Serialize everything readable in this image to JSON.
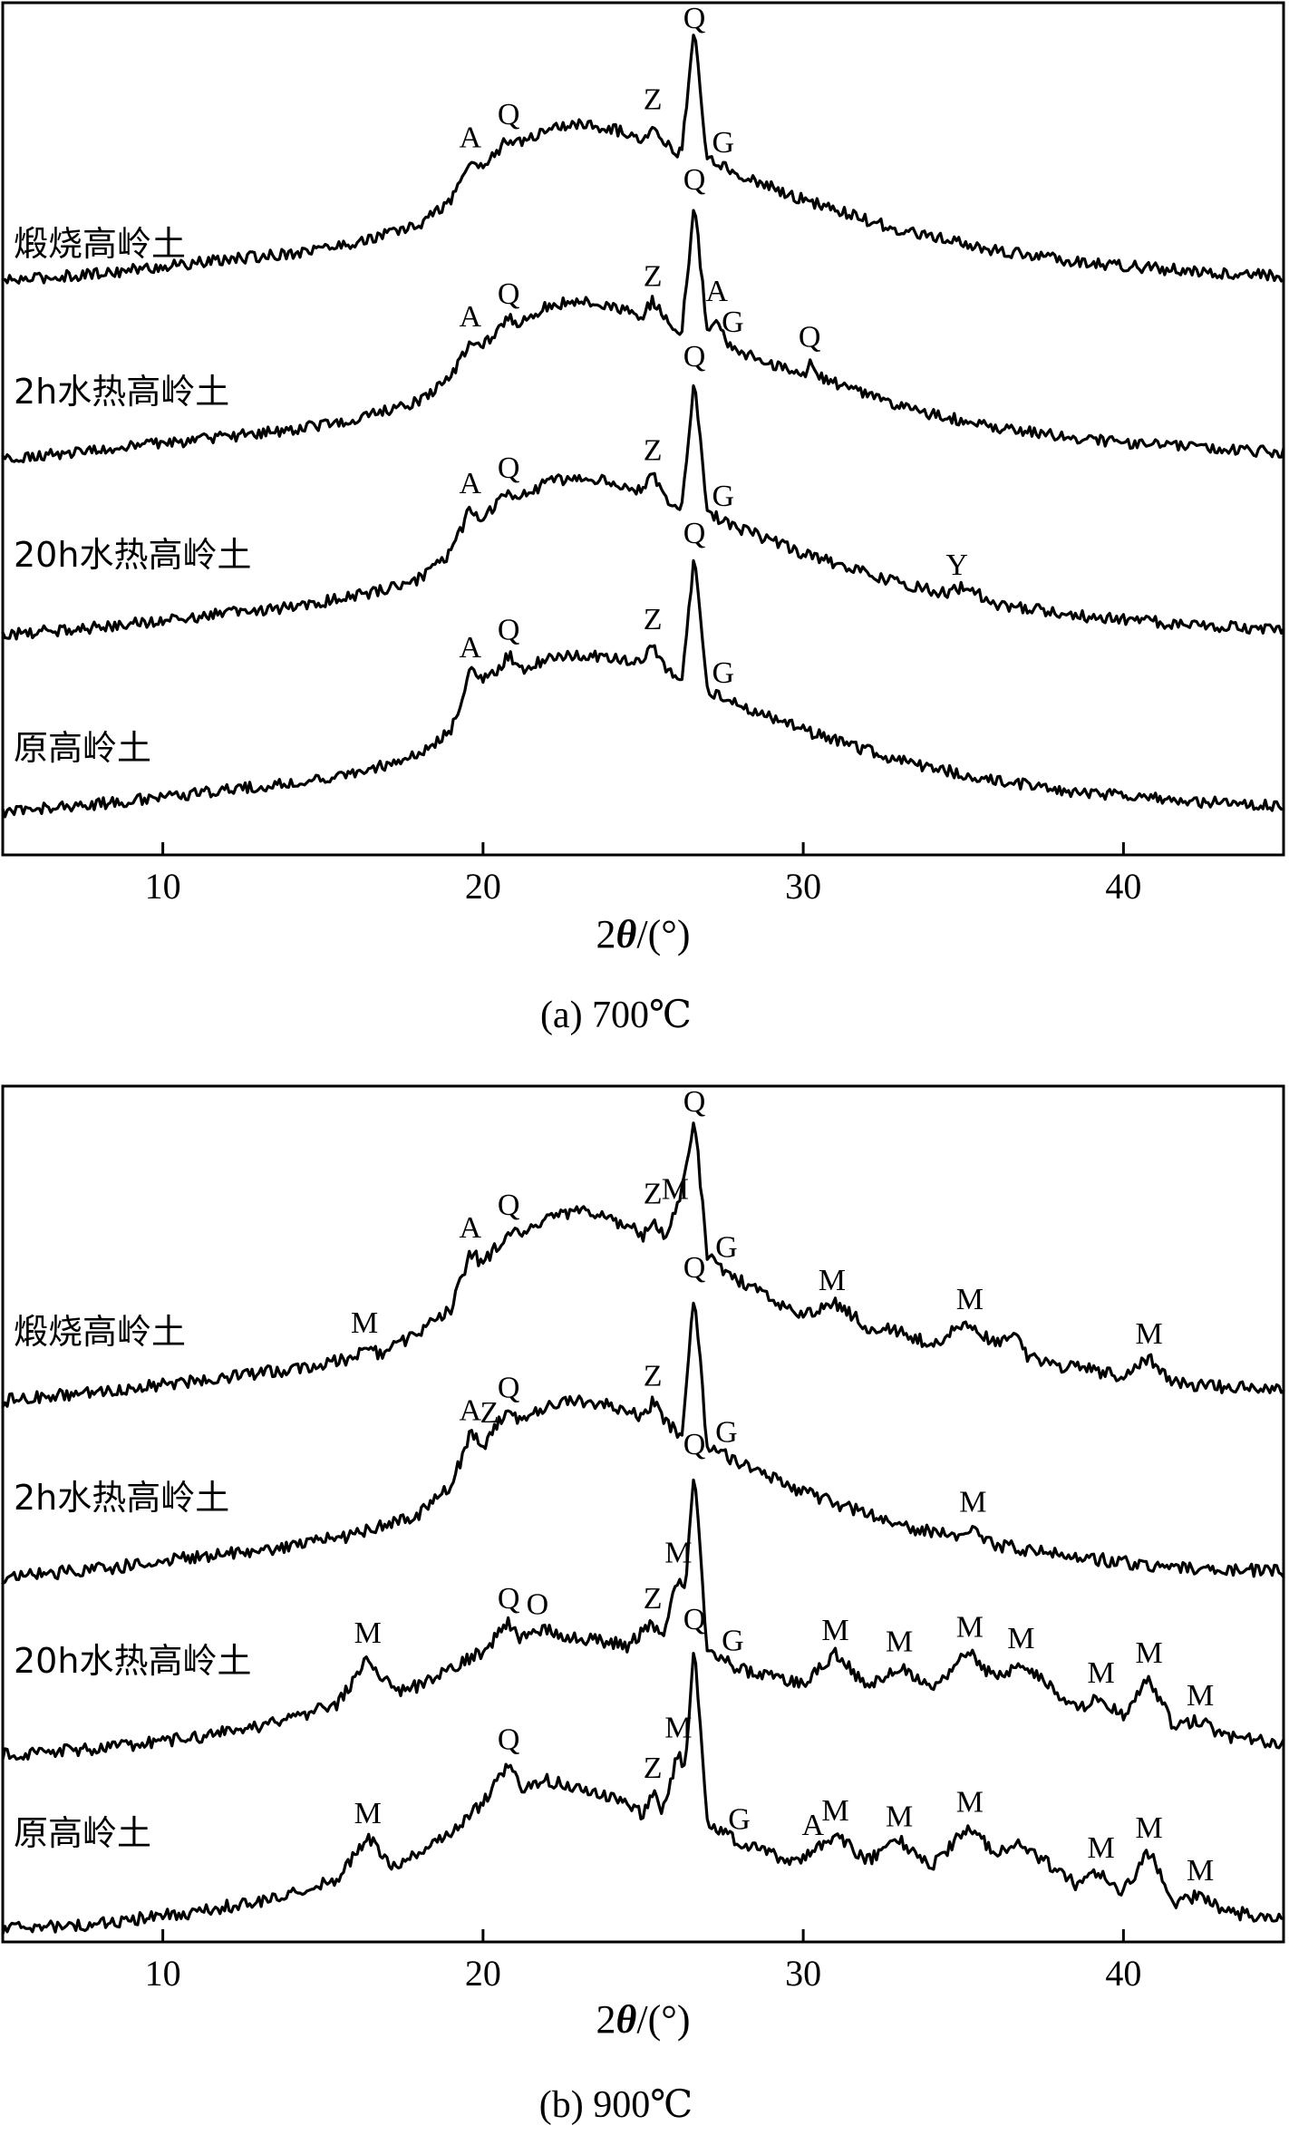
{
  "chart_data": [
    {
      "type": "line",
      "caption": "(a) 700℃",
      "xlabel": "2θ/(°)",
      "ylabel": "",
      "xlim": [
        5,
        45
      ],
      "xticks": [
        10,
        20,
        30,
        40
      ],
      "grid": false,
      "series": [
        {
          "name": "煅烧高岭土",
          "x": [
            5,
            8,
            11,
            14,
            16,
            18,
            19,
            19.6,
            20,
            20.5,
            20.8,
            21.2,
            22,
            23,
            24,
            25,
            25.3,
            25.7,
            26.2,
            26.6,
            27,
            28,
            30,
            33,
            36,
            39,
            42,
            45
          ],
          "values": [
            0.0,
            0.03,
            0.07,
            0.11,
            0.15,
            0.22,
            0.32,
            0.47,
            0.45,
            0.52,
            0.56,
            0.54,
            0.6,
            0.62,
            0.6,
            0.56,
            0.62,
            0.54,
            0.5,
            1.0,
            0.48,
            0.42,
            0.32,
            0.2,
            0.12,
            0.07,
            0.04,
            0.02
          ]
        },
        {
          "name": "2h水热高岭土",
          "x": [
            5,
            8,
            11,
            14,
            16,
            18,
            19,
            19.6,
            20,
            20.5,
            20.8,
            21.2,
            22,
            23,
            24,
            25,
            25.3,
            25.7,
            26.2,
            26.6,
            27,
            27.3,
            27.6,
            28,
            30,
            30.2,
            30.5,
            33,
            36,
            39,
            42,
            45
          ],
          "values": [
            0.0,
            0.03,
            0.07,
            0.11,
            0.15,
            0.22,
            0.32,
            0.46,
            0.44,
            0.5,
            0.55,
            0.53,
            0.6,
            0.62,
            0.6,
            0.56,
            0.62,
            0.54,
            0.5,
            1.0,
            0.5,
            0.56,
            0.46,
            0.42,
            0.32,
            0.38,
            0.32,
            0.2,
            0.12,
            0.07,
            0.04,
            0.02
          ]
        },
        {
          "name": "20h水热高岭土",
          "x": [
            5,
            8,
            11,
            14,
            16,
            18,
            19,
            19.6,
            20,
            20.5,
            20.8,
            21.2,
            22,
            23,
            24,
            25,
            25.3,
            25.7,
            26.2,
            26.6,
            27,
            28,
            30,
            33,
            34.5,
            35,
            36,
            39,
            42,
            45
          ],
          "values": [
            0.0,
            0.03,
            0.07,
            0.11,
            0.15,
            0.22,
            0.32,
            0.5,
            0.46,
            0.52,
            0.56,
            0.54,
            0.6,
            0.62,
            0.6,
            0.56,
            0.63,
            0.54,
            0.5,
            1.0,
            0.48,
            0.42,
            0.32,
            0.2,
            0.16,
            0.19,
            0.12,
            0.07,
            0.04,
            0.02
          ]
        },
        {
          "name": "原高岭土",
          "x": [
            5,
            8,
            11,
            14,
            16,
            18,
            19,
            19.6,
            20,
            20.5,
            20.8,
            21.2,
            22,
            23,
            24,
            25,
            25.3,
            25.7,
            26.2,
            26.6,
            27,
            28,
            30,
            33,
            36,
            39,
            42,
            45
          ],
          "values": [
            0.0,
            0.03,
            0.07,
            0.11,
            0.15,
            0.22,
            0.32,
            0.55,
            0.52,
            0.56,
            0.62,
            0.56,
            0.6,
            0.62,
            0.6,
            0.58,
            0.66,
            0.56,
            0.52,
            1.0,
            0.48,
            0.42,
            0.32,
            0.2,
            0.12,
            0.07,
            0.04,
            0.02
          ]
        }
      ],
      "peak_labels": [
        {
          "series": 0,
          "x": 19.6,
          "text": "A"
        },
        {
          "series": 0,
          "x": 20.8,
          "text": "Q"
        },
        {
          "series": 0,
          "x": 25.3,
          "text": "Z"
        },
        {
          "series": 0,
          "x": 26.6,
          "text": "Q"
        },
        {
          "series": 0,
          "x": 27.5,
          "text": "G"
        },
        {
          "series": 1,
          "x": 19.6,
          "text": "A"
        },
        {
          "series": 1,
          "x": 20.8,
          "text": "Q"
        },
        {
          "series": 1,
          "x": 25.3,
          "text": "Z"
        },
        {
          "series": 1,
          "x": 26.6,
          "text": "Q"
        },
        {
          "series": 1,
          "x": 27.3,
          "text": "A"
        },
        {
          "series": 1,
          "x": 27.8,
          "text": "G"
        },
        {
          "series": 1,
          "x": 30.2,
          "text": "Q"
        },
        {
          "series": 2,
          "x": 19.6,
          "text": "A"
        },
        {
          "series": 2,
          "x": 20.8,
          "text": "Q"
        },
        {
          "series": 2,
          "x": 25.3,
          "text": "Z"
        },
        {
          "series": 2,
          "x": 26.6,
          "text": "Q"
        },
        {
          "series": 2,
          "x": 27.5,
          "text": "G"
        },
        {
          "series": 2,
          "x": 34.8,
          "text": "Y"
        },
        {
          "series": 3,
          "x": 19.6,
          "text": "A"
        },
        {
          "series": 3,
          "x": 20.8,
          "text": "Q"
        },
        {
          "series": 3,
          "x": 25.3,
          "text": "Z"
        },
        {
          "series": 3,
          "x": 26.6,
          "text": "Q"
        },
        {
          "series": 3,
          "x": 27.5,
          "text": "G"
        }
      ]
    },
    {
      "type": "line",
      "caption": "(b) 900℃",
      "xlabel": "2θ/(°)",
      "ylabel": "",
      "xlim": [
        5,
        45
      ],
      "xticks": [
        10,
        20,
        30,
        40
      ],
      "grid": false,
      "series": [
        {
          "name": "煅烧高岭土",
          "x": [
            5,
            8,
            11,
            14,
            16,
            16.4,
            16.8,
            18,
            19,
            19.6,
            20,
            20.5,
            20.8,
            21.2,
            22,
            23,
            24,
            25,
            25.3,
            25.7,
            26.1,
            26.6,
            27,
            28,
            29,
            30,
            31,
            32,
            33,
            34,
            35.2,
            36,
            36.5,
            37,
            38,
            39,
            40,
            40.8,
            41.5,
            43,
            45
          ],
          "values": [
            0.0,
            0.03,
            0.07,
            0.11,
            0.15,
            0.2,
            0.16,
            0.24,
            0.32,
            0.52,
            0.48,
            0.55,
            0.6,
            0.57,
            0.64,
            0.66,
            0.64,
            0.58,
            0.64,
            0.58,
            0.68,
            1.0,
            0.5,
            0.42,
            0.36,
            0.3,
            0.34,
            0.26,
            0.24,
            0.2,
            0.27,
            0.2,
            0.24,
            0.16,
            0.12,
            0.11,
            0.08,
            0.15,
            0.06,
            0.05,
            0.04
          ]
        },
        {
          "name": "2h水热高岭土",
          "x": [
            5,
            8,
            11,
            14,
            16,
            18,
            19,
            19.6,
            20,
            20.5,
            20.8,
            21.2,
            22,
            23,
            24,
            25,
            25.3,
            25.7,
            26.2,
            26.6,
            27,
            28,
            30,
            33,
            35,
            35.3,
            35.7,
            38,
            41,
            45
          ],
          "values": [
            0.0,
            0.03,
            0.07,
            0.11,
            0.15,
            0.22,
            0.32,
            0.5,
            0.46,
            0.54,
            0.58,
            0.54,
            0.6,
            0.62,
            0.6,
            0.56,
            0.62,
            0.54,
            0.5,
            1.0,
            0.46,
            0.4,
            0.3,
            0.18,
            0.14,
            0.18,
            0.12,
            0.08,
            0.04,
            0.02
          ]
        },
        {
          "name": "20h水热高岭土",
          "x": [
            5,
            8,
            11,
            14,
            15.5,
            16.4,
            17.2,
            18,
            19,
            20,
            20.8,
            21.2,
            21.7,
            22.5,
            23.5,
            24.5,
            25.3,
            25.6,
            26.1,
            26.3,
            26.6,
            27,
            28,
            29,
            30,
            31,
            32,
            33,
            34,
            35.2,
            36,
            36.8,
            37.5,
            38.5,
            39.3,
            40,
            40.8,
            41.6,
            42.4,
            43.2,
            45
          ],
          "values": [
            0.0,
            0.02,
            0.06,
            0.12,
            0.18,
            0.34,
            0.22,
            0.24,
            0.3,
            0.36,
            0.46,
            0.4,
            0.44,
            0.42,
            0.4,
            0.38,
            0.46,
            0.4,
            0.62,
            0.56,
            1.0,
            0.36,
            0.3,
            0.27,
            0.25,
            0.35,
            0.24,
            0.31,
            0.22,
            0.36,
            0.26,
            0.32,
            0.26,
            0.16,
            0.2,
            0.13,
            0.27,
            0.09,
            0.12,
            0.06,
            0.04
          ]
        },
        {
          "name": "原高岭土",
          "x": [
            5,
            8,
            11,
            14,
            15.5,
            16.4,
            17.2,
            18,
            19,
            20,
            20.8,
            21.2,
            22,
            23,
            24,
            25,
            25.3,
            25.6,
            26.1,
            26.3,
            26.6,
            27,
            28,
            29,
            30,
            30.3,
            31,
            32,
            33,
            34,
            35.2,
            36,
            36.8,
            37.5,
            38.5,
            39.3,
            40,
            40.8,
            41.6,
            42.4,
            43.2,
            45
          ],
          "values": [
            0.0,
            0.02,
            0.06,
            0.12,
            0.18,
            0.32,
            0.22,
            0.26,
            0.34,
            0.44,
            0.58,
            0.5,
            0.52,
            0.5,
            0.46,
            0.4,
            0.48,
            0.42,
            0.62,
            0.56,
            1.0,
            0.38,
            0.3,
            0.26,
            0.24,
            0.28,
            0.33,
            0.24,
            0.31,
            0.22,
            0.36,
            0.26,
            0.3,
            0.24,
            0.16,
            0.2,
            0.13,
            0.27,
            0.09,
            0.12,
            0.06,
            0.04
          ]
        }
      ],
      "peak_labels": [
        {
          "series": 0,
          "x": 16.3,
          "text": "M"
        },
        {
          "series": 0,
          "x": 19.6,
          "text": "A"
        },
        {
          "series": 0,
          "x": 20.8,
          "text": "Q"
        },
        {
          "series": 0,
          "x": 25.3,
          "text": "Z"
        },
        {
          "series": 0,
          "x": 26.0,
          "text": "M"
        },
        {
          "series": 0,
          "x": 26.6,
          "text": "Q"
        },
        {
          "series": 0,
          "x": 27.6,
          "text": "G"
        },
        {
          "series": 0,
          "x": 30.9,
          "text": "M"
        },
        {
          "series": 0,
          "x": 35.2,
          "text": "M"
        },
        {
          "series": 0,
          "x": 40.8,
          "text": "M"
        },
        {
          "series": 1,
          "x": 19.6,
          "text": "A"
        },
        {
          "series": 1,
          "x": 20.2,
          "text": "Z"
        },
        {
          "series": 1,
          "x": 20.8,
          "text": "Q"
        },
        {
          "series": 1,
          "x": 25.3,
          "text": "Z"
        },
        {
          "series": 1,
          "x": 26.6,
          "text": "Q"
        },
        {
          "series": 1,
          "x": 27.6,
          "text": "G"
        },
        {
          "series": 1,
          "x": 35.3,
          "text": "M"
        },
        {
          "series": 2,
          "x": 16.4,
          "text": "M"
        },
        {
          "series": 2,
          "x": 20.8,
          "text": "Q"
        },
        {
          "series": 2,
          "x": 21.7,
          "text": "O"
        },
        {
          "series": 2,
          "x": 25.3,
          "text": "Z"
        },
        {
          "series": 2,
          "x": 26.1,
          "text": "M"
        },
        {
          "series": 2,
          "x": 26.6,
          "text": "Q"
        },
        {
          "series": 2,
          "x": 27.8,
          "text": "G"
        },
        {
          "series": 2,
          "x": 31.0,
          "text": "M"
        },
        {
          "series": 2,
          "x": 33.0,
          "text": "M"
        },
        {
          "series": 2,
          "x": 35.2,
          "text": "M"
        },
        {
          "series": 2,
          "x": 36.8,
          "text": "M"
        },
        {
          "series": 2,
          "x": 39.3,
          "text": "M"
        },
        {
          "series": 2,
          "x": 40.8,
          "text": "M"
        },
        {
          "series": 2,
          "x": 42.4,
          "text": "M"
        },
        {
          "series": 3,
          "x": 16.4,
          "text": "M"
        },
        {
          "series": 3,
          "x": 20.8,
          "text": "Q"
        },
        {
          "series": 3,
          "x": 25.3,
          "text": "Z"
        },
        {
          "series": 3,
          "x": 26.1,
          "text": "M"
        },
        {
          "series": 3,
          "x": 26.6,
          "text": "Q"
        },
        {
          "series": 3,
          "x": 28.0,
          "text": "G"
        },
        {
          "series": 3,
          "x": 30.3,
          "text": "A"
        },
        {
          "series": 3,
          "x": 31.0,
          "text": "M"
        },
        {
          "series": 3,
          "x": 33.0,
          "text": "M"
        },
        {
          "series": 3,
          "x": 35.2,
          "text": "M"
        },
        {
          "series": 3,
          "x": 39.3,
          "text": "M"
        },
        {
          "series": 3,
          "x": 40.8,
          "text": "M"
        },
        {
          "series": 3,
          "x": 42.4,
          "text": "M"
        }
      ]
    }
  ]
}
